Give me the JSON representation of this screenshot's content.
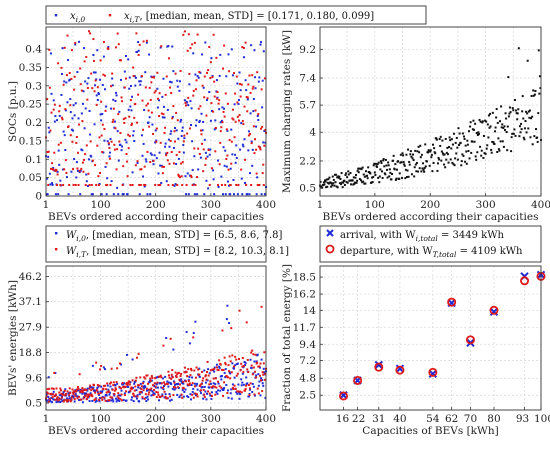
{
  "chart_data": [
    {
      "id": "socs",
      "type": "scatter",
      "xlabel": "BEVs ordered according their capacities",
      "ylabel": "SOCs [p.u.]",
      "xlim": [
        1,
        400
      ],
      "ylim": [
        0,
        0.46
      ],
      "xticks": [
        1,
        100,
        200,
        300,
        400
      ],
      "yticks": [
        0,
        0.05,
        0.1,
        0.15,
        0.2,
        0.25,
        0.3,
        0.35,
        0.4
      ],
      "ytick_labels": [
        "0",
        "0.05",
        "0.1",
        "0.15",
        "0.2",
        "0.25",
        "0.3",
        "0.35",
        "0.4"
      ],
      "legend": {
        "placement": "top",
        "entries": [
          {
            "sym": "x",
            "sub": "i,0",
            "text": ""
          },
          {
            "sym": "x",
            "sub": "i,T",
            "text": ", [median, mean, STD] = [0.171, 0.180, 0.099]"
          }
        ]
      },
      "series": [
        {
          "label": "x_{i,0}",
          "color": "#1f2bd6",
          "seed": 11,
          "kind": "soc0"
        },
        {
          "label": "x_{i,T}",
          "color": "#e01818",
          "seed": 23,
          "kind": "socT"
        }
      ]
    },
    {
      "id": "rates",
      "type": "scatter",
      "xlabel": "BEVs ordered according their capacities",
      "ylabel": "Maximum charging rates [kW]",
      "xlim": [
        1,
        400
      ],
      "ylim": [
        0,
        10.6
      ],
      "xticks": [
        1,
        100,
        200,
        300,
        400
      ],
      "yticks": [
        0.5,
        2.2,
        4,
        5.7,
        7.4,
        9.2
      ],
      "ytick_labels": [
        "0.5",
        "2.2",
        "4",
        "5.7",
        "7.4",
        "9.2"
      ],
      "series": [
        {
          "label": "rates",
          "color": "#111111",
          "seed": 37,
          "kind": "rates"
        }
      ]
    },
    {
      "id": "energies",
      "type": "scatter",
      "xlabel": "BEVs ordered according their capacities",
      "ylabel": "BEVs' energies [kWh]",
      "xlim": [
        1,
        400
      ],
      "ylim": [
        -2,
        50
      ],
      "xticks": [
        1,
        100,
        200,
        300,
        400
      ],
      "yticks": [
        0.5,
        9.6,
        18.8,
        27.9,
        37.1,
        46.2
      ],
      "ytick_labels": [
        "0.5",
        "9.6",
        "18.8",
        "27.9",
        "37.1",
        "46.2"
      ],
      "legend": {
        "placement": "top",
        "entries": [
          {
            "sym": "W",
            "sub": "i,0",
            "text": ", [median, mean, STD] = [6.5, 8.6, 7.8]"
          },
          {
            "sym": "W",
            "sub": "i,T",
            "text": ", [median, mean, STD] = [8.2, 10.3, 8.1]"
          }
        ]
      },
      "series": [
        {
          "label": "W_{i,0}",
          "color": "#1f2bd6",
          "seed": 53,
          "kind": "en0"
        },
        {
          "label": "W_{i,T}",
          "color": "#e01818",
          "seed": 71,
          "kind": "enT"
        }
      ]
    },
    {
      "id": "fraction",
      "type": "scatter",
      "xlabel": "Capacities of BEVs [kWh]",
      "ylabel": "Fraction of total energy [%]",
      "xlim": [
        6,
        100
      ],
      "ylim": [
        0.5,
        20
      ],
      "categories": [
        "16",
        "22",
        "31",
        "40",
        "54",
        "62",
        "70",
        "80",
        "93",
        "100"
      ],
      "x": [
        16,
        22,
        31,
        40,
        54,
        62,
        70,
        80,
        93,
        100
      ],
      "xticks": [
        16,
        22,
        31,
        40,
        54,
        62,
        70,
        80,
        93,
        100
      ],
      "yticks": [
        2.5,
        4.8,
        7.2,
        9.4,
        11.7,
        14,
        16.2,
        18.5
      ],
      "ytick_labels": [
        "2.5",
        "4.8",
        "7.2",
        "9.4",
        "11.7",
        "14",
        "16.2",
        "18.5"
      ],
      "legend": {
        "placement": "top",
        "entries": [
          {
            "sym": "",
            "sub": "",
            "text": "arrival, with W",
            "sub2": "i,total",
            "text2": " = 3449 kWh",
            "marker": "x",
            "color": "#1f2bd6"
          },
          {
            "sym": "",
            "sub": "",
            "text": "departure, with W",
            "sub2": "T,total",
            "text2": " = 4109 kWh",
            "marker": "o",
            "color": "#e01818"
          }
        ]
      },
      "series": [
        {
          "name": "arrival",
          "marker": "x",
          "color": "#1f2bd6",
          "values": [
            2.5,
            4.5,
            6.6,
            6.1,
            5.4,
            15.0,
            9.6,
            13.8,
            18.6,
            18.8
          ]
        },
        {
          "name": "departure",
          "marker": "o",
          "color": "#e01818",
          "values": [
            2.4,
            4.5,
            6.3,
            5.9,
            5.6,
            15.1,
            10.0,
            14.0,
            18.0,
            18.6
          ]
        }
      ]
    }
  ]
}
